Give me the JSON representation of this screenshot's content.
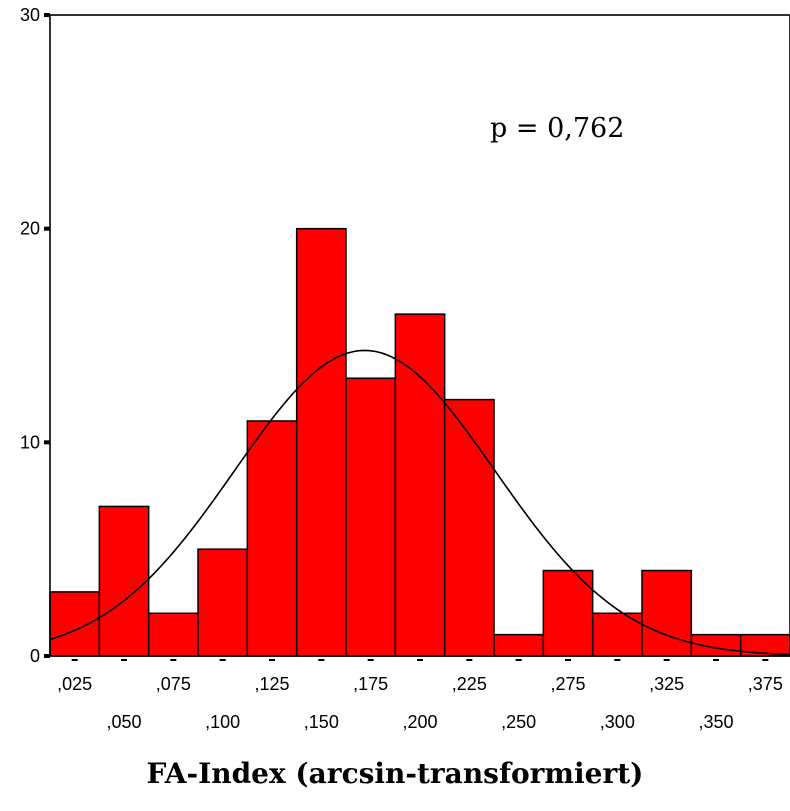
{
  "chart_data": {
    "type": "bar",
    "categories": [
      ",025",
      ",050",
      ",075",
      ",100",
      ",125",
      ",150",
      ",175",
      ",200",
      ",225",
      ",250",
      ",275",
      ",300",
      ",325",
      ",350",
      ",375"
    ],
    "values": [
      3,
      7,
      2,
      5,
      11,
      20,
      13,
      16,
      12,
      1,
      4,
      2,
      4,
      1,
      1
    ],
    "bar_color": "#ff0000",
    "ylim": [
      0,
      30
    ],
    "yticks": [
      "0",
      "10",
      "20",
      "30"
    ],
    "annotation": "p = 0,762",
    "xlabel": "FA-Index (arcsin-transformiert)",
    "ylabel": "",
    "title": "",
    "normal_curve": {
      "mean": 0.172,
      "sd": 0.066,
      "peak": 14.3
    }
  }
}
